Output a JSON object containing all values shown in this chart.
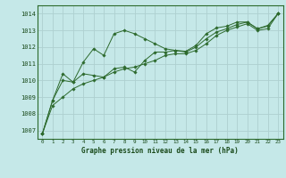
{
  "title": "Graphe pression niveau de la mer (hPa)",
  "bg_color": "#c5e8e8",
  "grid_color": "#aed0d0",
  "line_color": "#2d6a2d",
  "marker_color": "#2d6a2d",
  "xlim": [
    -0.5,
    23.5
  ],
  "ylim": [
    1006.5,
    1014.5
  ],
  "yticks": [
    1007,
    1008,
    1009,
    1010,
    1011,
    1012,
    1013,
    1014
  ],
  "xticks": [
    0,
    1,
    2,
    3,
    4,
    5,
    6,
    7,
    8,
    9,
    10,
    11,
    12,
    13,
    14,
    15,
    16,
    17,
    18,
    19,
    20,
    21,
    22,
    23
  ],
  "series": [
    {
      "x": [
        0,
        1,
        2,
        3,
        4,
        5,
        6,
        7,
        8,
        9,
        10,
        11,
        12,
        13,
        14,
        15,
        16,
        17,
        18,
        19,
        20,
        21,
        22,
        23
      ],
      "y": [
        1006.8,
        1008.8,
        1010.4,
        1009.9,
        1011.1,
        1011.9,
        1011.5,
        1012.8,
        1013.0,
        1012.8,
        1012.5,
        1012.2,
        1011.9,
        1011.8,
        1011.75,
        1012.1,
        1012.8,
        1013.15,
        1013.25,
        1013.5,
        1013.5,
        1013.1,
        1013.3,
        1014.0
      ]
    },
    {
      "x": [
        0,
        1,
        2,
        3,
        4,
        5,
        6,
        7,
        8,
        9,
        10,
        11,
        12,
        13,
        14,
        15,
        16,
        17,
        18,
        19,
        20,
        21,
        22,
        23
      ],
      "y": [
        1006.8,
        1008.8,
        1010.0,
        1009.9,
        1010.4,
        1010.3,
        1010.2,
        1010.7,
        1010.8,
        1010.5,
        1011.2,
        1011.7,
        1011.7,
        1011.8,
        1011.7,
        1012.0,
        1012.5,
        1012.9,
        1013.1,
        1013.35,
        1013.5,
        1013.1,
        1013.25,
        1014.0
      ]
    },
    {
      "x": [
        0,
        1,
        2,
        3,
        4,
        5,
        6,
        7,
        8,
        9,
        10,
        11,
        12,
        13,
        14,
        15,
        16,
        17,
        18,
        19,
        20,
        21,
        22,
        23
      ],
      "y": [
        1006.8,
        1008.5,
        1009.0,
        1009.5,
        1009.8,
        1010.0,
        1010.2,
        1010.5,
        1010.7,
        1010.8,
        1011.0,
        1011.2,
        1011.5,
        1011.6,
        1011.6,
        1011.8,
        1012.2,
        1012.7,
        1013.0,
        1013.2,
        1013.4,
        1013.0,
        1013.1,
        1014.0
      ]
    }
  ]
}
